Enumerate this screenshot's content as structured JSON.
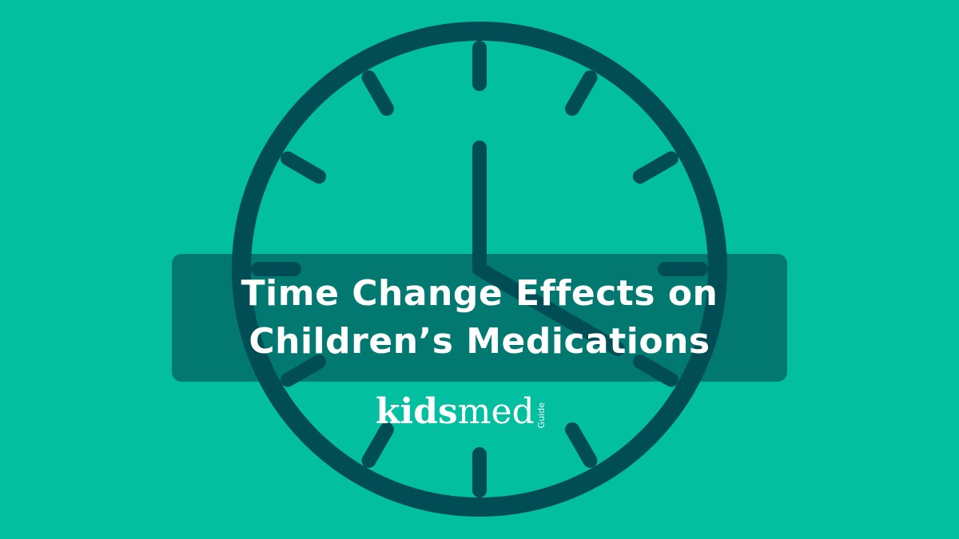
{
  "colors": {
    "background": "#02bf9f",
    "clock": "#014d55",
    "banner": "rgba(1,77,85,0.62)",
    "text": "#ffffff"
  },
  "clock": {
    "icon": "clock-icon",
    "time_shown": "4:00"
  },
  "title": {
    "line1": "Time Change Effects on",
    "line2": "Children’s Medications"
  },
  "logo": {
    "part1": "kids",
    "part2": "med",
    "part3": "Guide"
  }
}
